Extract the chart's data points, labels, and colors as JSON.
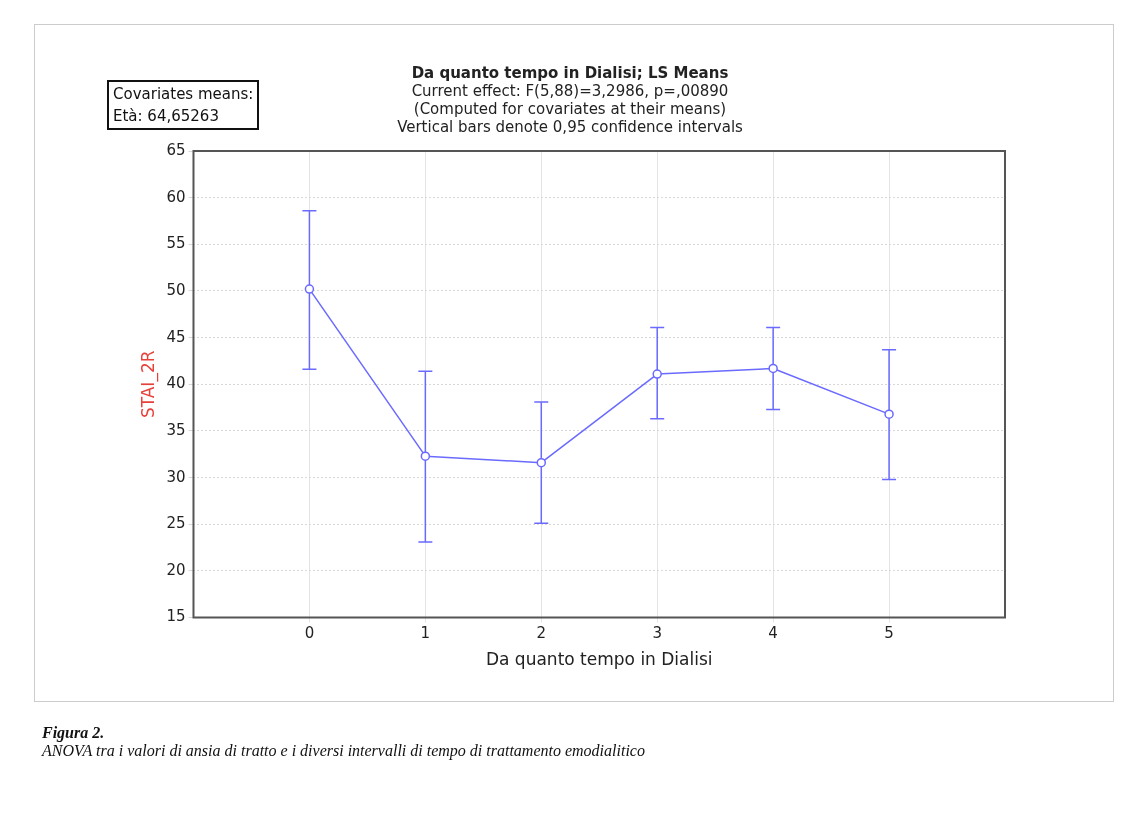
{
  "chart_data": {
    "type": "line",
    "title": "Da quanto tempo in Dialisi; LS Means",
    "subtitle": "Current effect: F(5,88)=3,2986, p=,00890\n(Computed for covariates at their means)\nVertical bars denote 0,95 confidence intervals",
    "xlabel": "Da quanto tempo in Dialisi",
    "ylabel": "STAI_2R",
    "x": [
      0,
      1,
      2,
      3,
      4,
      5
    ],
    "series": [
      {
        "color": "#6a6aff",
        "values": [
          50.2,
          32.3,
          31.6,
          41.1,
          41.7,
          36.8
        ],
        "errors": [
          [
            41.6,
            58.6
          ],
          [
            23.1,
            41.4
          ],
          [
            25.1,
            38.1
          ],
          [
            36.3,
            46.1
          ],
          [
            37.3,
            46.1
          ],
          [
            29.8,
            43.7
          ]
        ]
      }
    ],
    "xlim": [
      -1,
      6
    ],
    "xticks": [
      0,
      1,
      2,
      3,
      4,
      5
    ],
    "ylim": [
      15,
      65
    ],
    "yticks": [
      15,
      20,
      25,
      30,
      35,
      40,
      45,
      50,
      55,
      60,
      65
    ],
    "grid": true,
    "legend": false,
    "marker": "circle",
    "line_style": "solid",
    "annotations": [
      "Covariates means:\nEtà: 64,65263",
      "Figura 2.",
      "ANOVA tra i valori di ansia di tratto e i diversi intervalli di tempo di trattamento emodialitico"
    ]
  }
}
